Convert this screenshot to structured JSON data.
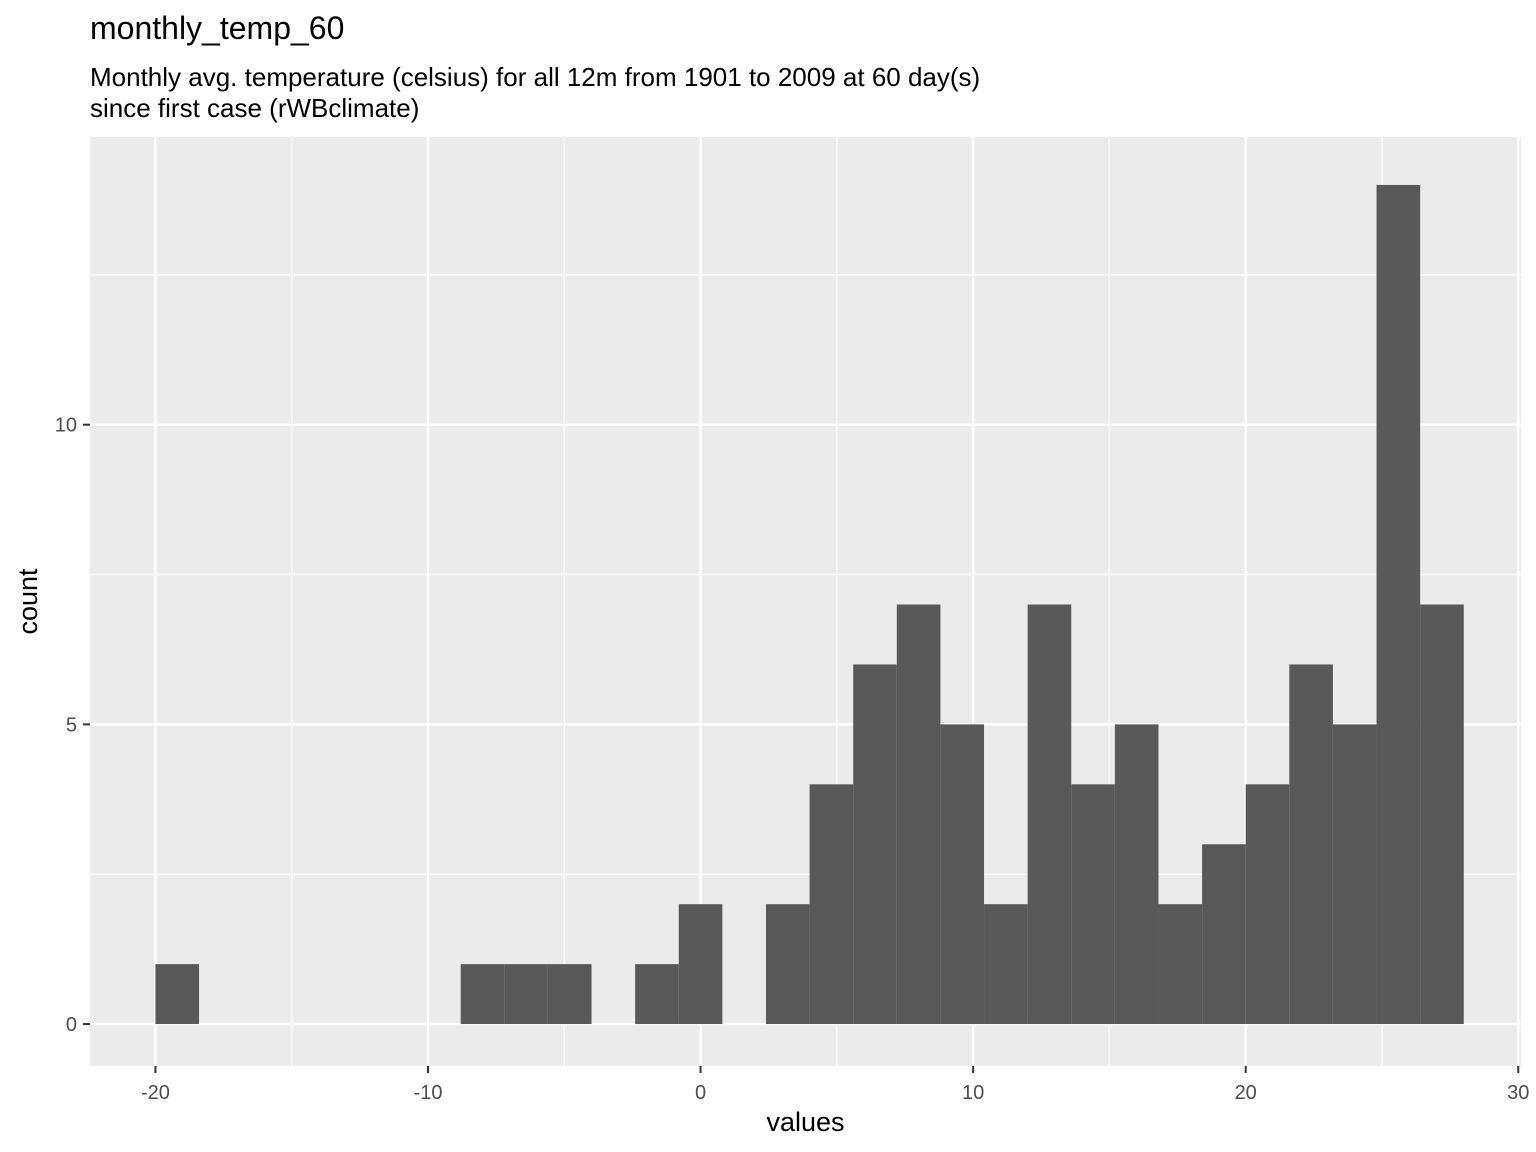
{
  "title": "monthly_temp_60",
  "subtitle_line1": "Monthly avg. temperature (celsius) for all 12m from 1901 to 2009 at 60 day(s)",
  "subtitle_line2": "since first case (rWBclimate)",
  "chart_data": {
    "type": "bar",
    "title": "monthly_temp_60",
    "subtitle": "Monthly avg. temperature (celsius) for all 12m from 1901 to 2009 at 60 day(s) since first case (rWBclimate)",
    "xlabel": "values",
    "ylabel": "count",
    "xlim": [
      -22.4,
      30.1
    ],
    "ylim": [
      -0.7,
      14.8
    ],
    "x_ticks": [
      -20,
      -10,
      0,
      10,
      20,
      30
    ],
    "y_ticks": [
      0,
      5,
      10
    ],
    "bin_width": 1.6,
    "bins": [
      {
        "x0": -20.0,
        "x1": -18.4,
        "count": 1
      },
      {
        "x0": -8.8,
        "x1": -7.2,
        "count": 1
      },
      {
        "x0": -7.2,
        "x1": -5.6,
        "count": 1
      },
      {
        "x0": -5.6,
        "x1": -4.0,
        "count": 1
      },
      {
        "x0": -2.4,
        "x1": -0.8,
        "count": 1
      },
      {
        "x0": -0.8,
        "x1": 0.8,
        "count": 2
      },
      {
        "x0": 2.4,
        "x1": 4.0,
        "count": 2
      },
      {
        "x0": 4.0,
        "x1": 5.6,
        "count": 4
      },
      {
        "x0": 5.6,
        "x1": 7.2,
        "count": 6
      },
      {
        "x0": 7.2,
        "x1": 8.8,
        "count": 7
      },
      {
        "x0": 8.8,
        "x1": 10.4,
        "count": 5
      },
      {
        "x0": 10.4,
        "x1": 12.0,
        "count": 2
      },
      {
        "x0": 12.0,
        "x1": 13.6,
        "count": 7
      },
      {
        "x0": 13.6,
        "x1": 15.2,
        "count": 4
      },
      {
        "x0": 15.2,
        "x1": 16.8,
        "count": 5
      },
      {
        "x0": 16.8,
        "x1": 18.4,
        "count": 2
      },
      {
        "x0": 18.4,
        "x1": 20.0,
        "count": 3
      },
      {
        "x0": 20.0,
        "x1": 21.6,
        "count": 4
      },
      {
        "x0": 21.6,
        "x1": 23.2,
        "count": 6
      },
      {
        "x0": 23.2,
        "x1": 24.8,
        "count": 5
      },
      {
        "x0": 24.8,
        "x1": 26.4,
        "count": 14
      },
      {
        "x0": 26.4,
        "x1": 28.0,
        "count": 7
      }
    ],
    "bar_color": "#595959",
    "panel_background": "#ebebeb",
    "grid": true,
    "legend": "none"
  }
}
